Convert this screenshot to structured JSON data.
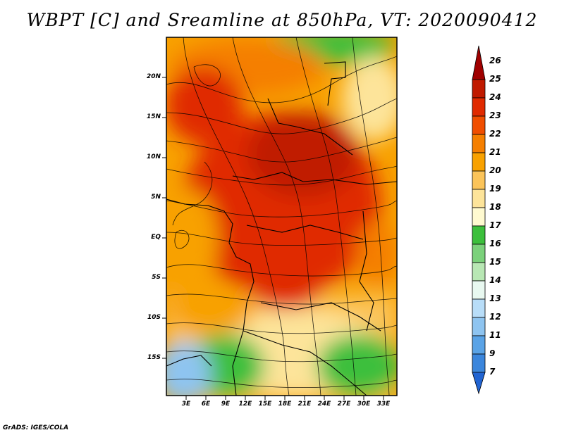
{
  "title": "WBPT [C] and Sreamline at 850hPa, VT: 2020090412",
  "footer": "GrADS: IGES/COLA",
  "y_axis": [
    "20N",
    "15N",
    "10N",
    "5N",
    "EQ",
    "5S",
    "10S",
    "15S"
  ],
  "x_axis": [
    "3E",
    "6E",
    "9E",
    "12E",
    "15E",
    "18E",
    "21E",
    "24E",
    "27E",
    "30E",
    "33E"
  ],
  "colorbar": {
    "labels": [
      "26",
      "25",
      "24",
      "23",
      "22",
      "21",
      "20",
      "19",
      "18",
      "17",
      "16",
      "15",
      "14",
      "13",
      "12",
      "11",
      "9",
      "7"
    ],
    "colors": [
      "#a00000",
      "#c01a00",
      "#e02a00",
      "#f04e00",
      "#f57f00",
      "#f8a100",
      "#fbc45a",
      "#fde49a",
      "#fffad0",
      "#3cbf3c",
      "#7bd17b",
      "#b8e7b4",
      "#e8f8f0",
      "#b8ddf8",
      "#8ec4f0",
      "#5aa3e6",
      "#3b86dc",
      "#2164d2"
    ]
  }
}
